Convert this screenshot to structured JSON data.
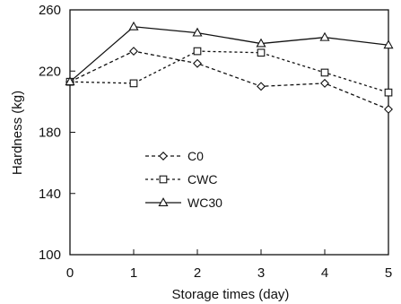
{
  "chart_data": {
    "type": "line",
    "xlabel": "Storage times (day)",
    "ylabel": "Hardness (kg)",
    "x": [
      0,
      1,
      2,
      3,
      4,
      5
    ],
    "xlim": [
      0,
      5
    ],
    "ylim": [
      100,
      260
    ],
    "xticks": [
      0,
      1,
      2,
      3,
      4,
      5
    ],
    "yticks": [
      100,
      140,
      180,
      220,
      260
    ],
    "grid": false,
    "legend_position": "center-left",
    "series": [
      {
        "name": "C0",
        "marker": "diamond",
        "dash": "4,3",
        "values": [
          213,
          233,
          225,
          210,
          212,
          195
        ]
      },
      {
        "name": "CWC",
        "marker": "square",
        "dash": "3,3",
        "values": [
          213,
          212,
          233,
          232,
          219,
          206
        ]
      },
      {
        "name": "WC30",
        "marker": "triangle",
        "dash": "",
        "values": [
          213,
          249,
          245,
          238,
          242,
          237
        ]
      }
    ]
  }
}
